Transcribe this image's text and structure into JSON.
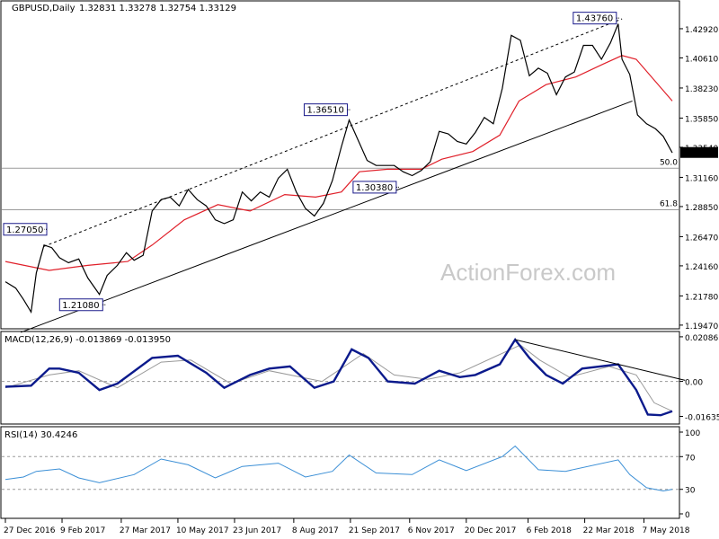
{
  "header": {
    "symbol": "GBPUSD,Daily",
    "ohlc": "1.32831 1.33278 1.32754 1.33129"
  },
  "watermark": "ActionForex.com",
  "colors": {
    "price": "#000000",
    "sma": "#e0202a",
    "macd": "#0b1a8c",
    "signal": "#9a9a9a",
    "rsi": "#3b8fd6",
    "grid_level": "#9a9a9a"
  },
  "chart_data": [
    {
      "type": "line",
      "title": "GBPUSD,Daily",
      "ylim": [
        1.1925,
        1.4505
      ],
      "y_ticks": [
        "1.42920",
        "1.40610",
        "1.38230",
        "1.35850",
        "1.33540",
        "1.31160",
        "1.28850",
        "1.26470",
        "1.24160",
        "1.21780",
        "1.19470"
      ],
      "x_ticks": [
        "27 Dec 2016",
        "9 Feb 2017",
        "27 Mar 2017",
        "10 May 2017",
        "23 Jun 2017",
        "8 Aug 2017",
        "21 Sep 2017",
        "6 Nov 2017",
        "20 Dec 2017",
        "6 Feb 2018",
        "22 Mar 2018",
        "7 May 2018"
      ],
      "last_price": "1.33129",
      "series": [
        {
          "points": [
            [
              "2016-12-27",
              1.229
            ],
            [
              "2017-01-04",
              1.224
            ],
            [
              "2017-01-10",
              1.215
            ],
            [
              "2017-01-16",
              1.205
            ],
            [
              "2017-01-20",
              1.236
            ],
            [
              "2017-01-26",
              1.258
            ],
            [
              "2017-02-01",
              1.256
            ],
            [
              "2017-02-07",
              1.248
            ],
            [
              "2017-02-14",
              1.244
            ],
            [
              "2017-02-22",
              1.247
            ],
            [
              "2017-03-01",
              1.232
            ],
            [
              "2017-03-10",
              1.219
            ],
            [
              "2017-03-16",
              1.234
            ],
            [
              "2017-03-24",
              1.242
            ],
            [
              "2017-03-31",
              1.252
            ],
            [
              "2017-04-06",
              1.246
            ],
            [
              "2017-04-13",
              1.25
            ],
            [
              "2017-04-20",
              1.285
            ],
            [
              "2017-04-27",
              1.294
            ],
            [
              "2017-05-04",
              1.296
            ],
            [
              "2017-05-11",
              1.289
            ],
            [
              "2017-05-18",
              1.302
            ],
            [
              "2017-05-25",
              1.294
            ],
            [
              "2017-06-01",
              1.289
            ],
            [
              "2017-06-08",
              1.278
            ],
            [
              "2017-06-15",
              1.275
            ],
            [
              "2017-06-22",
              1.278
            ],
            [
              "2017-06-29",
              1.3
            ],
            [
              "2017-07-06",
              1.293
            ],
            [
              "2017-07-13",
              1.3
            ],
            [
              "2017-07-20",
              1.296
            ],
            [
              "2017-07-27",
              1.311
            ],
            [
              "2017-08-03",
              1.318
            ],
            [
              "2017-08-10",
              1.3
            ],
            [
              "2017-08-17",
              1.287
            ],
            [
              "2017-08-24",
              1.281
            ],
            [
              "2017-08-31",
              1.291
            ],
            [
              "2017-09-07",
              1.309
            ],
            [
              "2017-09-14",
              1.336
            ],
            [
              "2017-09-20",
              1.357
            ],
            [
              "2017-09-27",
              1.341
            ],
            [
              "2017-10-04",
              1.325
            ],
            [
              "2017-10-11",
              1.321
            ],
            [
              "2017-10-18",
              1.321
            ],
            [
              "2017-10-25",
              1.321
            ],
            [
              "2017-11-01",
              1.316
            ],
            [
              "2017-11-08",
              1.313
            ],
            [
              "2017-11-15",
              1.317
            ],
            [
              "2017-11-22",
              1.324
            ],
            [
              "2017-11-29",
              1.348
            ],
            [
              "2017-12-06",
              1.346
            ],
            [
              "2017-12-13",
              1.34
            ],
            [
              "2017-12-20",
              1.338
            ],
            [
              "2017-12-27",
              1.347
            ],
            [
              "2018-01-03",
              1.359
            ],
            [
              "2018-01-10",
              1.354
            ],
            [
              "2018-01-17",
              1.382
            ],
            [
              "2018-01-24",
              1.424
            ],
            [
              "2018-01-31",
              1.42
            ],
            [
              "2018-02-07",
              1.392
            ],
            [
              "2018-02-14",
              1.398
            ],
            [
              "2018-02-21",
              1.394
            ],
            [
              "2018-02-28",
              1.377
            ],
            [
              "2018-03-07",
              1.391
            ],
            [
              "2018-03-14",
              1.395
            ],
            [
              "2018-03-21",
              1.416
            ],
            [
              "2018-03-28",
              1.416
            ],
            [
              "2018-04-04",
              1.405
            ],
            [
              "2018-04-11",
              1.418
            ],
            [
              "2018-04-17",
              1.433
            ],
            [
              "2018-04-20",
              1.405
            ],
            [
              "2018-04-26",
              1.393
            ],
            [
              "2018-05-02",
              1.361
            ],
            [
              "2018-05-09",
              1.354
            ],
            [
              "2018-05-16",
              1.35
            ],
            [
              "2018-05-22",
              1.344
            ],
            [
              "2018-05-29",
              1.331
            ]
          ]
        },
        {
          "name": "SMA",
          "points": [
            [
              "2016-12-27",
              1.245
            ],
            [
              "2017-01-30",
              1.238
            ],
            [
              "2017-03-01",
              1.242
            ],
            [
              "2017-04-01",
              1.245
            ],
            [
              "2017-04-20",
              1.258
            ],
            [
              "2017-05-15",
              1.278
            ],
            [
              "2017-06-10",
              1.29
            ],
            [
              "2017-07-05",
              1.285
            ],
            [
              "2017-08-01",
              1.298
            ],
            [
              "2017-08-25",
              1.296
            ],
            [
              "2017-09-14",
              1.3
            ],
            [
              "2017-09-28",
              1.316
            ],
            [
              "2017-10-20",
              1.318
            ],
            [
              "2017-11-15",
              1.318
            ],
            [
              "2017-12-01",
              1.326
            ],
            [
              "2017-12-25",
              1.332
            ],
            [
              "2018-01-15",
              1.345
            ],
            [
              "2018-01-30",
              1.372
            ],
            [
              "2018-02-20",
              1.385
            ],
            [
              "2018-03-15",
              1.391
            ],
            [
              "2018-04-05",
              1.401
            ],
            [
              "2018-04-20",
              1.408
            ],
            [
              "2018-05-01",
              1.405
            ],
            [
              "2018-05-29",
              1.372
            ]
          ]
        }
      ],
      "trendlines": [
        {
          "style": "solid",
          "from": [
            "2017-01-08",
            1.189
          ],
          "to": [
            "2018-04-28",
            1.372
          ]
        },
        {
          "style": "dashed",
          "from": [
            "2017-01-26",
            1.257
          ],
          "to": [
            "2018-04-20",
            1.437
          ]
        }
      ],
      "annotations": [
        {
          "label": "1.43760",
          "x": "2018-04-17",
          "y": 1.4376
        },
        {
          "label": "1.36510",
          "x": "2017-09-20",
          "y": 1.3651
        },
        {
          "label": "1.30380",
          "x": "2017-10-28",
          "y": 1.3038
        },
        {
          "label": "1.27050",
          "x": "2017-01-25",
          "y": 1.2705
        },
        {
          "label": "1.21080",
          "x": "2017-03-14",
          "y": 1.2108
        }
      ],
      "fib_levels": [
        {
          "label": "50.0",
          "y": 1.3188
        },
        {
          "label": "61.8",
          "y": 1.286
        }
      ]
    },
    {
      "type": "line",
      "title": "MACD(12,26,9) -0.013869 -0.013950",
      "ylim": [
        -0.0195,
        0.0225
      ],
      "y_ticks": [
        "0.020861",
        "0.00",
        "-0.016357"
      ],
      "series": [
        {
          "name": "MACD",
          "points": [
            [
              "2016-12-27",
              -0.0025
            ],
            [
              "2017-01-16",
              -0.002
            ],
            [
              "2017-01-30",
              0.006
            ],
            [
              "2017-02-07",
              0.006
            ],
            [
              "2017-02-22",
              0.004
            ],
            [
              "2017-03-10",
              -0.004
            ],
            [
              "2017-03-24",
              -0.001
            ],
            [
              "2017-04-20",
              0.011
            ],
            [
              "2017-05-10",
              0.012
            ],
            [
              "2017-06-01",
              0.004
            ],
            [
              "2017-06-15",
              -0.003
            ],
            [
              "2017-07-05",
              0.003
            ],
            [
              "2017-07-20",
              0.006
            ],
            [
              "2017-08-05",
              0.007
            ],
            [
              "2017-08-24",
              -0.003
            ],
            [
              "2017-09-08",
              0.0
            ],
            [
              "2017-09-22",
              0.015
            ],
            [
              "2017-10-05",
              0.011
            ],
            [
              "2017-10-20",
              0.0
            ],
            [
              "2017-11-10",
              -0.001
            ],
            [
              "2017-11-29",
              0.005
            ],
            [
              "2017-12-15",
              0.002
            ],
            [
              "2017-12-27",
              0.003
            ],
            [
              "2018-01-15",
              0.008
            ],
            [
              "2018-01-27",
              0.0195
            ],
            [
              "2018-02-07",
              0.011
            ],
            [
              "2018-02-20",
              0.003
            ],
            [
              "2018-03-05",
              -0.001
            ],
            [
              "2018-03-20",
              0.006
            ],
            [
              "2018-04-17",
              0.008
            ],
            [
              "2018-05-01",
              -0.004
            ],
            [
              "2018-05-10",
              -0.0155
            ],
            [
              "2018-05-20",
              -0.0158
            ],
            [
              "2018-05-29",
              -0.0139
            ]
          ]
        },
        {
          "name": "Signal",
          "points": [
            [
              "2016-12-27",
              -0.003
            ],
            [
              "2017-01-30",
              0.003
            ],
            [
              "2017-02-22",
              0.005
            ],
            [
              "2017-03-24",
              -0.003
            ],
            [
              "2017-04-27",
              0.009
            ],
            [
              "2017-05-20",
              0.01
            ],
            [
              "2017-06-20",
              -0.001
            ],
            [
              "2017-07-20",
              0.005
            ],
            [
              "2017-08-30",
              0.0
            ],
            [
              "2017-10-01",
              0.013
            ],
            [
              "2017-10-25",
              0.003
            ],
            [
              "2017-11-20",
              0.001
            ],
            [
              "2017-12-15",
              0.004
            ],
            [
              "2018-01-31",
              0.017
            ],
            [
              "2018-02-15",
              0.01
            ],
            [
              "2018-03-10",
              0.002
            ],
            [
              "2018-04-10",
              0.007
            ],
            [
              "2018-05-01",
              0.003
            ],
            [
              "2018-05-15",
              -0.01
            ],
            [
              "2018-05-29",
              -0.0139
            ]
          ]
        }
      ],
      "trendlines": [
        {
          "style": "solid",
          "from": [
            "2018-01-27",
            0.0195
          ],
          "to": [
            "2018-06-08",
            0.0005
          ]
        }
      ]
    },
    {
      "type": "line",
      "title": "RSI(14) 30.4246",
      "ylim": [
        0,
        100
      ],
      "y_ticks": [
        "100",
        "70",
        "30",
        "0"
      ],
      "levels": [
        70,
        30
      ],
      "series": [
        {
          "name": "RSI",
          "points": [
            [
              "2016-12-27",
              42
            ],
            [
              "2017-01-10",
              45
            ],
            [
              "2017-01-20",
              52
            ],
            [
              "2017-02-07",
              55
            ],
            [
              "2017-02-22",
              44
            ],
            [
              "2017-03-10",
              38
            ],
            [
              "2017-04-06",
              48
            ],
            [
              "2017-04-27",
              67
            ],
            [
              "2017-05-18",
              60
            ],
            [
              "2017-06-08",
              44
            ],
            [
              "2017-06-29",
              58
            ],
            [
              "2017-07-27",
              62
            ],
            [
              "2017-08-17",
              45
            ],
            [
              "2017-09-07",
              52
            ],
            [
              "2017-09-20",
              72
            ],
            [
              "2017-10-11",
              50
            ],
            [
              "2017-11-08",
              48
            ],
            [
              "2017-11-29",
              66
            ],
            [
              "2017-12-20",
              53
            ],
            [
              "2018-01-17",
              70
            ],
            [
              "2018-01-27",
              83
            ],
            [
              "2018-02-14",
              54
            ],
            [
              "2018-03-07",
              52
            ],
            [
              "2018-04-17",
              66
            ],
            [
              "2018-04-26",
              48
            ],
            [
              "2018-05-09",
              32
            ],
            [
              "2018-05-22",
              28
            ],
            [
              "2018-05-29",
              30
            ]
          ]
        }
      ]
    }
  ]
}
